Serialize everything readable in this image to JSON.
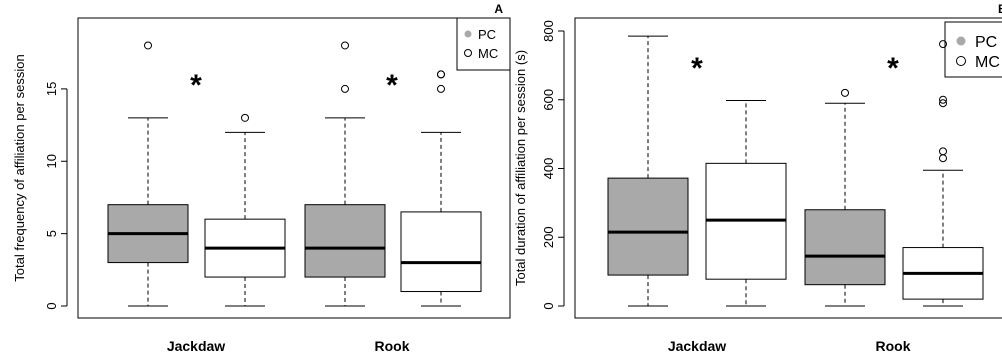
{
  "colors": {
    "pc_fill": "#a9a9a9",
    "mc_fill": "#ffffff",
    "line": "#000000"
  },
  "chart_data": [
    {
      "type": "boxplot",
      "panel_label": "A",
      "ylabel": "Total frequency of affiliation per session",
      "xlabel": "",
      "ylim": [
        0,
        19
      ],
      "yticks": [
        0,
        5,
        10,
        15
      ],
      "categories": [
        "Jackdaw",
        "Rook"
      ],
      "legend": {
        "position": "top-right",
        "entries": [
          {
            "label": "PC",
            "marker": "filled-circle"
          },
          {
            "label": "MC",
            "marker": "open-circle"
          }
        ]
      },
      "significance": [
        "*",
        "*"
      ],
      "series": [
        {
          "name": "PC",
          "boxes": [
            {
              "category": "Jackdaw",
              "min": 0,
              "q1": 3,
              "median": 5,
              "q3": 7,
              "max": 13,
              "outliers": [
                18
              ]
            },
            {
              "category": "Rook",
              "min": 0,
              "q1": 2,
              "median": 4,
              "q3": 7,
              "max": 13,
              "outliers": [
                15,
                18
              ]
            }
          ]
        },
        {
          "name": "MC",
          "boxes": [
            {
              "category": "Jackdaw",
              "min": 0,
              "q1": 2,
              "median": 4,
              "q3": 6,
              "max": 12,
              "outliers": [
                13
              ]
            },
            {
              "category": "Rook",
              "min": 0,
              "q1": 1,
              "median": 3,
              "q3": 6.5,
              "max": 12,
              "outliers": [
                15,
                16,
                16
              ]
            }
          ]
        }
      ]
    },
    {
      "type": "boxplot",
      "panel_label": "B",
      "ylabel": "Total duration of affiliation per session (s)",
      "xlabel": "",
      "ylim": [
        0,
        800
      ],
      "yticks": [
        0,
        200,
        400,
        600,
        800
      ],
      "categories": [
        "Jackdaw",
        "Rook"
      ],
      "legend": {
        "position": "top-right",
        "entries": [
          {
            "label": "PC",
            "marker": "filled-circle"
          },
          {
            "label": "MC",
            "marker": "open-circle"
          }
        ]
      },
      "significance": [
        "*",
        "*"
      ],
      "series": [
        {
          "name": "PC",
          "boxes": [
            {
              "category": "Jackdaw",
              "min": 0,
              "q1": 90,
              "median": 215,
              "q3": 372,
              "max": 785,
              "outliers": []
            },
            {
              "category": "Rook",
              "min": 0,
              "q1": 62,
              "median": 145,
              "q3": 280,
              "max": 590,
              "outliers": [
                620
              ]
            }
          ]
        },
        {
          "name": "MC",
          "boxes": [
            {
              "category": "Jackdaw",
              "min": 0,
              "q1": 78,
              "median": 250,
              "q3": 415,
              "max": 598,
              "outliers": []
            },
            {
              "category": "Rook",
              "min": 0,
              "q1": 20,
              "median": 95,
              "q3": 170,
              "max": 395,
              "outliers": [
                430,
                450,
                590,
                600,
                762
              ]
            }
          ]
        }
      ]
    }
  ]
}
